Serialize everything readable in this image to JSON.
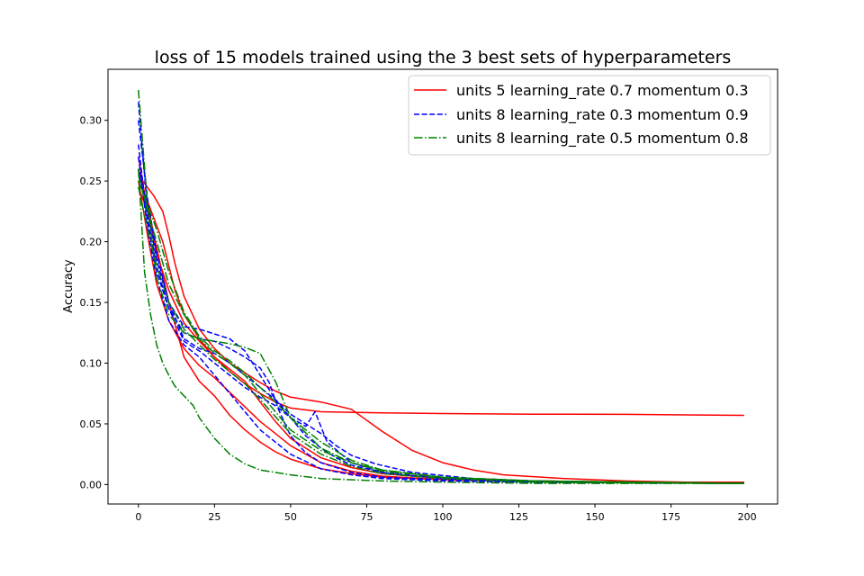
{
  "chart_data": {
    "type": "line",
    "title": "loss of 15 models trained using the 3 best sets of hyperparameters",
    "xlabel": "",
    "ylabel": "Accuracy",
    "xlim": [
      -10,
      210
    ],
    "ylim": [
      -0.016,
      0.342
    ],
    "xticks": [
      0,
      25,
      50,
      75,
      100,
      125,
      150,
      175,
      200
    ],
    "yticks": [
      0.0,
      0.05,
      0.1,
      0.15,
      0.2,
      0.25,
      0.3
    ],
    "ytick_labels": [
      "0.00",
      "0.05",
      "0.10",
      "0.15",
      "0.20",
      "0.25",
      "0.30"
    ],
    "legend_position": "top-right",
    "groups": [
      {
        "name": "units 5 learning_rate 0.7 momentum 0.3",
        "color": "#ff0000",
        "style": "solid",
        "runs": [
          {
            "x": [
              0,
              2,
              5,
              8,
              10,
              12,
              15,
              20,
              25,
              30,
              35,
              40,
              45,
              50,
              60,
              70,
              80,
              90,
              100,
              110,
              120,
              140,
              160,
              180,
              199
            ],
            "y": [
              0.255,
              0.248,
              0.238,
              0.225,
              0.205,
              0.182,
              0.155,
              0.128,
              0.112,
              0.1,
              0.092,
              0.084,
              0.077,
              0.072,
              0.068,
              0.062,
              0.044,
              0.028,
              0.018,
              0.012,
              0.008,
              0.005,
              0.003,
              0.002,
              0.002
            ]
          },
          {
            "x": [
              0,
              2,
              5,
              8,
              10,
              12,
              15,
              20,
              25,
              30,
              35,
              40,
              45,
              50,
              60,
              80,
              100,
              130,
              160,
              199
            ],
            "y": [
              0.27,
              0.24,
              0.22,
              0.2,
              0.18,
              0.16,
              0.14,
              0.12,
              0.105,
              0.093,
              0.083,
              0.075,
              0.068,
              0.063,
              0.06,
              0.059,
              0.0585,
              0.058,
              0.0578,
              0.057
            ]
          },
          {
            "x": [
              0,
              3,
              6,
              10,
              15,
              20,
              25,
              30,
              35,
              40,
              45,
              50,
              60,
              70,
              80,
              100,
              130,
              199
            ],
            "y": [
              0.25,
              0.205,
              0.165,
              0.135,
              0.112,
              0.098,
              0.088,
              0.076,
              0.064,
              0.052,
              0.042,
              0.032,
              0.018,
              0.011,
              0.007,
              0.004,
              0.003,
              0.001
            ]
          },
          {
            "x": [
              0,
              3,
              6,
              10,
              15,
              20,
              25,
              30,
              35,
              40,
              45,
              50,
              60,
              70,
              80,
              100,
              130,
              199
            ],
            "y": [
              0.26,
              0.23,
              0.195,
              0.15,
              0.105,
              0.085,
              0.073,
              0.057,
              0.045,
              0.035,
              0.027,
              0.021,
              0.013,
              0.009,
              0.006,
              0.004,
              0.002,
              0.001
            ]
          },
          {
            "x": [
              0,
              3,
              6,
              10,
              15,
              20,
              25,
              30,
              35,
              40,
              45,
              50,
              60,
              70,
              80,
              100,
              130,
              199
            ],
            "y": [
              0.245,
              0.225,
              0.19,
              0.16,
              0.133,
              0.118,
              0.105,
              0.095,
              0.085,
              0.068,
              0.052,
              0.038,
              0.022,
              0.014,
              0.009,
              0.005,
              0.003,
              0.001
            ]
          }
        ]
      },
      {
        "name": "units 8 learning_rate 0.3 momentum 0.9",
        "color": "#0000ff",
        "style": "dashed",
        "runs": [
          {
            "x": [
              0,
              3,
              6,
              10,
              15,
              20,
              25,
              30,
              35,
              40,
              43,
              46,
              50,
              55,
              60,
              70,
              80,
              100,
              130,
              199
            ],
            "y": [
              0.28,
              0.215,
              0.175,
              0.145,
              0.125,
              0.12,
              0.118,
              0.112,
              0.105,
              0.096,
              0.084,
              0.062,
              0.04,
              0.026,
              0.018,
              0.01,
              0.006,
              0.004,
              0.002,
              0.001
            ]
          },
          {
            "x": [
              0,
              3,
              6,
              10,
              15,
              20,
              25,
              30,
              35,
              40,
              45,
              50,
              55,
              58,
              62,
              70,
              80,
              100,
              130,
              199
            ],
            "y": [
              0.315,
              0.225,
              0.185,
              0.15,
              0.13,
              0.128,
              0.124,
              0.12,
              0.11,
              0.09,
              0.07,
              0.055,
              0.048,
              0.06,
              0.035,
              0.018,
              0.01,
              0.005,
              0.002,
              0.001
            ]
          },
          {
            "x": [
              0,
              3,
              6,
              10,
              15,
              20,
              25,
              30,
              35,
              40,
              45,
              50,
              55,
              60,
              65,
              70,
              78,
              90,
              110,
              140,
              199
            ],
            "y": [
              0.3,
              0.235,
              0.19,
              0.15,
              0.12,
              0.112,
              0.108,
              0.1,
              0.09,
              0.08,
              0.07,
              0.058,
              0.05,
              0.042,
              0.032,
              0.024,
              0.017,
              0.01,
              0.005,
              0.002,
              0.001
            ]
          },
          {
            "x": [
              0,
              3,
              6,
              10,
              15,
              20,
              25,
              30,
              35,
              40,
              45,
              50,
              60,
              70,
              80,
              100,
              130,
              199
            ],
            "y": [
              0.27,
              0.21,
              0.17,
              0.135,
              0.115,
              0.105,
              0.09,
              0.075,
              0.06,
              0.045,
              0.035,
              0.025,
              0.013,
              0.008,
              0.005,
              0.003,
              0.002,
              0.001
            ]
          },
          {
            "x": [
              0,
              3,
              6,
              10,
              15,
              20,
              25,
              30,
              35,
              40,
              45,
              50,
              55,
              60,
              65,
              70,
              80,
              90,
              110,
              140,
              199
            ],
            "y": [
              0.26,
              0.22,
              0.18,
              0.145,
              0.118,
              0.11,
              0.1,
              0.09,
              0.08,
              0.072,
              0.065,
              0.055,
              0.04,
              0.03,
              0.022,
              0.016,
              0.01,
              0.007,
              0.004,
              0.002,
              0.001
            ]
          }
        ]
      },
      {
        "name": "units 8 learning_rate 0.5 momentum 0.8",
        "color": "#008000",
        "style": "dashdot",
        "runs": [
          {
            "x": [
              0,
              3,
              6,
              10,
              15,
              20,
              25,
              30,
              35,
              40,
              45,
              50,
              60,
              70,
              80,
              100,
              130,
              199
            ],
            "y": [
              0.325,
              0.23,
              0.17,
              0.14,
              0.125,
              0.12,
              0.118,
              0.116,
              0.113,
              0.108,
              0.085,
              0.055,
              0.03,
              0.018,
              0.011,
              0.006,
              0.003,
              0.001
            ]
          },
          {
            "x": [
              0,
              2,
              4,
              6,
              8,
              10,
              12,
              15,
              18,
              20,
              25,
              30,
              35,
              40,
              50,
              60,
              80,
              100,
              130,
              199
            ],
            "y": [
              0.26,
              0.175,
              0.14,
              0.115,
              0.1,
              0.09,
              0.081,
              0.073,
              0.065,
              0.055,
              0.038,
              0.025,
              0.017,
              0.012,
              0.008,
              0.005,
              0.003,
              0.002,
              0.001,
              0.001
            ]
          },
          {
            "x": [
              0,
              3,
              6,
              10,
              15,
              20,
              25,
              30,
              35,
              40,
              45,
              50,
              60,
              70,
              80,
              100,
              130,
              199
            ],
            "y": [
              0.255,
              0.225,
              0.2,
              0.165,
              0.14,
              0.12,
              0.108,
              0.1,
              0.09,
              0.075,
              0.06,
              0.045,
              0.028,
              0.018,
              0.012,
              0.006,
              0.003,
              0.001
            ]
          },
          {
            "x": [
              0,
              3,
              6,
              10,
              15,
              20,
              25,
              30,
              35,
              40,
              45,
              50,
              60,
              70,
              80,
              100,
              130,
              199
            ],
            "y": [
              0.25,
              0.23,
              0.21,
              0.175,
              0.142,
              0.122,
              0.11,
              0.102,
              0.092,
              0.08,
              0.068,
              0.055,
              0.035,
              0.02,
              0.012,
              0.006,
              0.003,
              0.001
            ]
          },
          {
            "x": [
              0,
              3,
              6,
              10,
              15,
              20,
              25,
              30,
              35,
              40,
              45,
              50,
              60,
              70,
              80,
              100,
              130,
              199
            ],
            "y": [
              0.245,
              0.21,
              0.18,
              0.15,
              0.128,
              0.115,
              0.103,
              0.093,
              0.083,
              0.07,
              0.056,
              0.042,
              0.025,
              0.015,
              0.009,
              0.005,
              0.002,
              0.001
            ]
          }
        ]
      }
    ]
  }
}
